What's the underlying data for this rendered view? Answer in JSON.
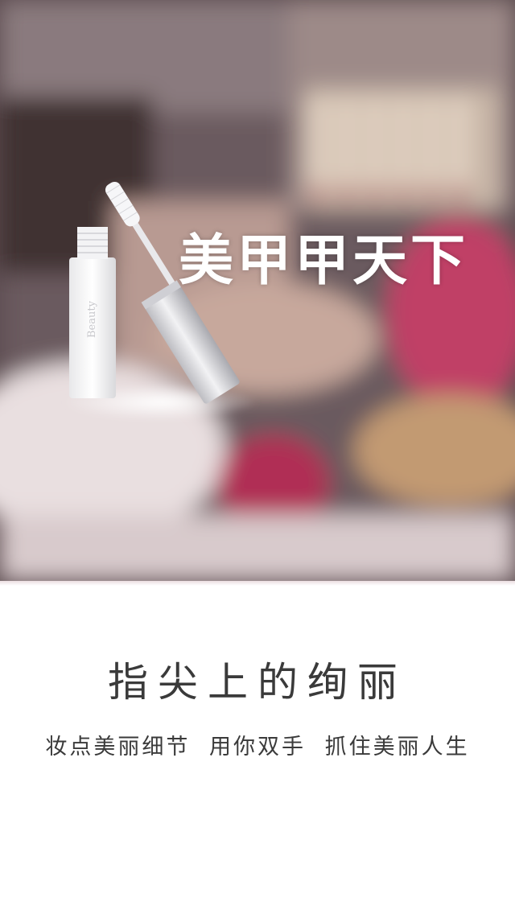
{
  "hero": {
    "title": "美甲甲天下",
    "image_description_icon": "mascara-product-icon"
  },
  "content": {
    "headline": "指尖上的绚丽",
    "tagline_parts": [
      "妆点美丽细节",
      "用你双手",
      "抓住美丽人生"
    ]
  },
  "colors": {
    "hero_overlay": "#5a4a4e",
    "accent_pink": "#c8375f",
    "text_dark": "#3a3a3a",
    "background": "#ffffff"
  }
}
